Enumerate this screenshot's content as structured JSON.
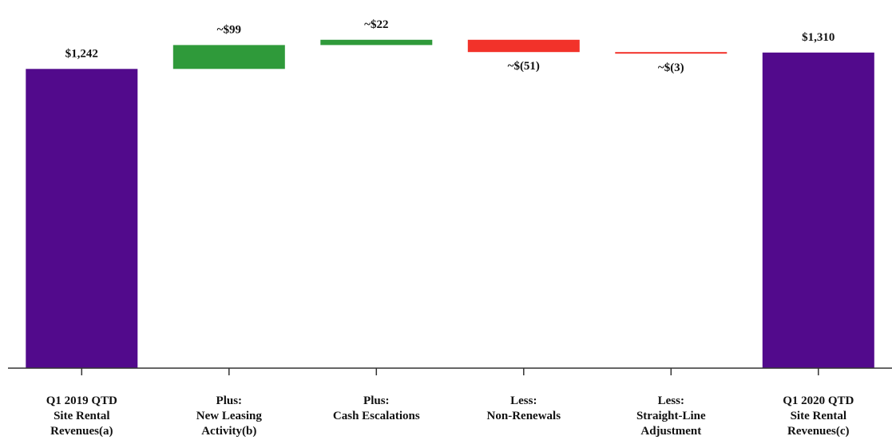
{
  "chart_data": {
    "type": "waterfall",
    "categories": [
      [
        "Q1 2019 QTD",
        "Site Rental",
        "Revenues(a)"
      ],
      [
        "Plus:",
        "New Leasing",
        "Activity(b)"
      ],
      [
        "Plus:",
        "Cash Escalations"
      ],
      [
        "Less:",
        "Non-Renewals"
      ],
      [
        "Less:",
        "Straight-Line",
        "Adjustment"
      ],
      [
        "Q1 2020 QTD",
        "Site Rental",
        "Revenues(c)"
      ]
    ],
    "values": [
      1242,
      99,
      22,
      -51,
      -3,
      1310
    ],
    "kinds": [
      "total",
      "increase",
      "increase",
      "decrease",
      "decrease",
      "total"
    ],
    "data_labels": [
      "$1,242",
      "~$99",
      "~$22",
      "~$(51)",
      "~$(3)",
      "$1,310"
    ],
    "ylim": [
      0,
      1400
    ],
    "grid": false,
    "colors": {
      "total": "#520a8c",
      "increase": "#2f9a3a",
      "decrease": "#f2322a",
      "axis": "#333333"
    }
  }
}
